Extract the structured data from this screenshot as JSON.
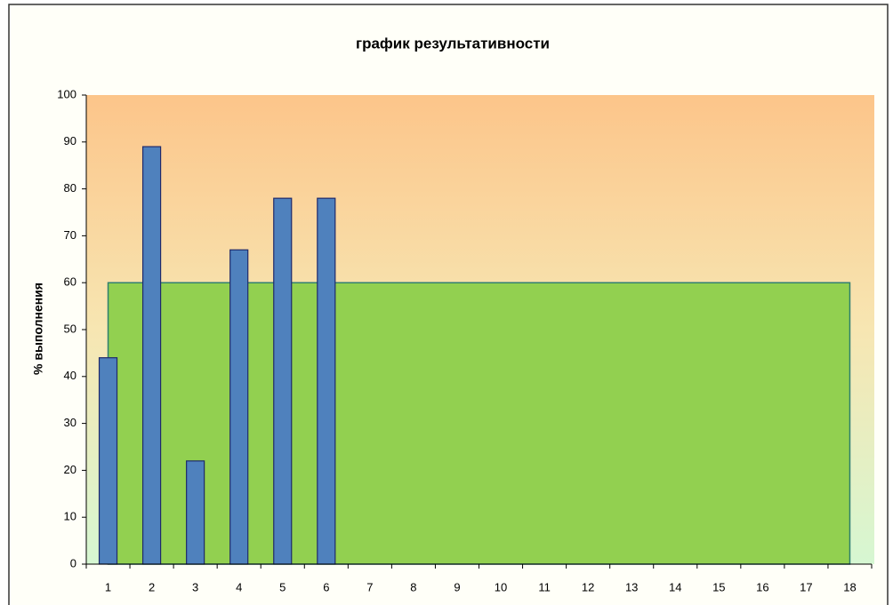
{
  "chart_data": {
    "type": "bar",
    "title": "график результативности",
    "y_label": "% выполнения",
    "categories": [
      "1",
      "2",
      "3",
      "4",
      "5",
      "6",
      "7",
      "8",
      "9",
      "10",
      "11",
      "12",
      "13",
      "14",
      "15",
      "16",
      "17",
      "18"
    ],
    "series": [
      {
        "type": "area",
        "color": "#92d050",
        "values": [
          60,
          60,
          60,
          60,
          60,
          60,
          60,
          60,
          60,
          60,
          60,
          60,
          60,
          60,
          60,
          60,
          60,
          60
        ]
      },
      {
        "type": "bar",
        "color": "#4f81bd",
        "values": [
          44,
          89,
          22,
          67,
          78,
          78,
          null,
          null,
          null,
          null,
          null,
          null,
          null,
          null,
          null,
          null,
          null,
          null
        ]
      }
    ],
    "ylim": [
      0,
      100
    ],
    "yticks": [
      0,
      10,
      20,
      30,
      40,
      50,
      60,
      70,
      80,
      90,
      100
    ]
  }
}
